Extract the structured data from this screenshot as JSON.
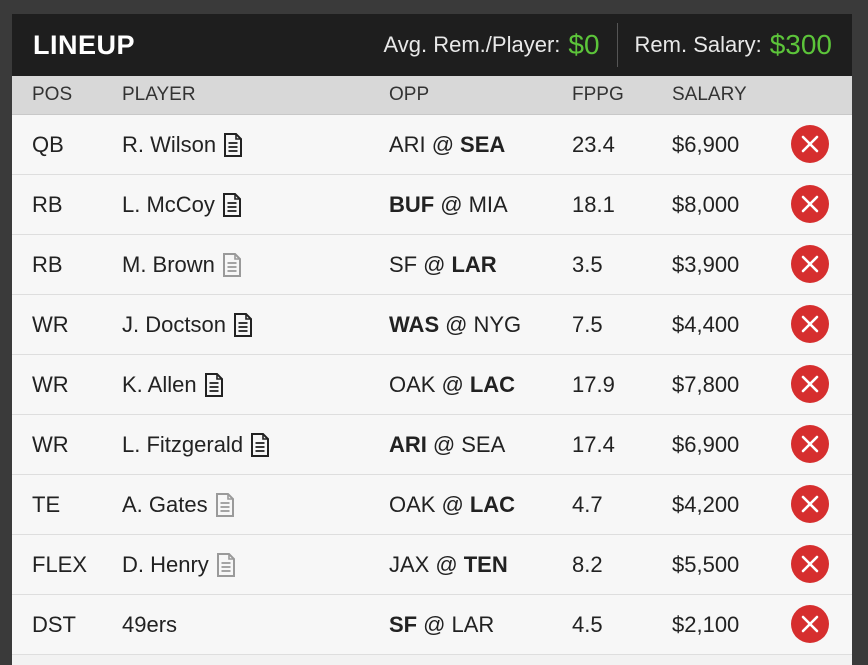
{
  "header": {
    "title": "LINEUP",
    "avg_label": "Avg. Rem./Player:",
    "avg_value": "$0",
    "rem_label": "Rem. Salary:",
    "rem_value": "$300"
  },
  "columns": {
    "pos": "POS",
    "player": "PLAYER",
    "opp": "OPP",
    "fppg": "FPPG",
    "salary": "SALARY"
  },
  "colors": {
    "accent_green": "#5cc43a",
    "remove_red": "#d62e2e",
    "header_bg": "#1e1e1e"
  },
  "rows": [
    {
      "pos": "QB",
      "player": "R. Wilson",
      "note": "dark",
      "away": "ARI",
      "home": "SEA",
      "bold": "home",
      "at": "@",
      "fppg": "23.4",
      "salary": "$6,900"
    },
    {
      "pos": "RB",
      "player": "L. McCoy",
      "note": "dark",
      "away": "BUF",
      "home": "MIA",
      "bold": "away",
      "at": "@",
      "fppg": "18.1",
      "salary": "$8,000"
    },
    {
      "pos": "RB",
      "player": "M. Brown",
      "note": "light",
      "away": "SF",
      "home": "LAR",
      "bold": "home",
      "at": "@",
      "fppg": "3.5",
      "salary": "$3,900"
    },
    {
      "pos": "WR",
      "player": "J. Doctson",
      "note": "dark",
      "away": "WAS",
      "home": "NYG",
      "bold": "away",
      "at": "@",
      "fppg": "7.5",
      "salary": "$4,400"
    },
    {
      "pos": "WR",
      "player": "K. Allen",
      "note": "dark",
      "away": "OAK",
      "home": "LAC",
      "bold": "home",
      "at": "@",
      "fppg": "17.9",
      "salary": "$7,800"
    },
    {
      "pos": "WR",
      "player": "L. Fitzgerald",
      "note": "dark",
      "away": "ARI",
      "home": "SEA",
      "bold": "away",
      "at": "@",
      "fppg": "17.4",
      "salary": "$6,900"
    },
    {
      "pos": "TE",
      "player": "A. Gates",
      "note": "light",
      "away": "OAK",
      "home": "LAC",
      "bold": "home",
      "at": "@",
      "fppg": "4.7",
      "salary": "$4,200"
    },
    {
      "pos": "FLEX",
      "player": "D. Henry",
      "note": "light",
      "away": "JAX",
      "home": "TEN",
      "bold": "home",
      "at": "@",
      "fppg": "8.2",
      "salary": "$5,500"
    },
    {
      "pos": "DST",
      "player": "49ers",
      "note": "none",
      "away": "SF",
      "home": "LAR",
      "bold": "away",
      "at": "@",
      "fppg": "4.5",
      "salary": "$2,100"
    }
  ]
}
